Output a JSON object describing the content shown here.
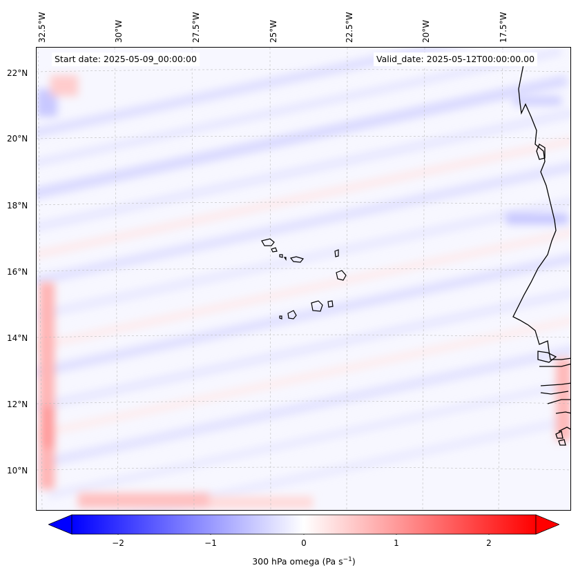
{
  "header": {
    "start_date": "Start date: 2025-05-09_00:00:00",
    "valid_date": "Valid_date: 2025-05-12T00:00:00.00"
  },
  "axes": {
    "longitude_labels": [
      "32.5°W",
      "30°W",
      "27.5°W",
      "25°W",
      "22.5°W",
      "20°W",
      "17.5°W"
    ],
    "latitude_labels": [
      "22°N",
      "20°N",
      "18°N",
      "16°N",
      "14°N",
      "12°N",
      "10°N"
    ]
  },
  "map": {
    "field": "300 hPa omega",
    "projection_extent": {
      "lon_min": -32.8,
      "lon_max": -15.2,
      "lat_min": 8.9,
      "lat_max": 22.8
    },
    "features": [
      "cabo-verde-islands",
      "west-africa-coastline"
    ],
    "gridlines": true
  },
  "colorbar": {
    "label_prefix": "300 hPa omega (Pa s",
    "label_exp": "−1",
    "label_suffix": ")",
    "ticks": [
      "−2",
      "−1",
      "0",
      "1",
      "2"
    ],
    "range": [
      -2.5,
      2.5
    ],
    "colormap": "bwr",
    "extend": "both"
  },
  "colors": {
    "negative": "#0000ff",
    "neutral": "#ffffff",
    "positive": "#ff0000",
    "coastline": "#000000"
  }
}
